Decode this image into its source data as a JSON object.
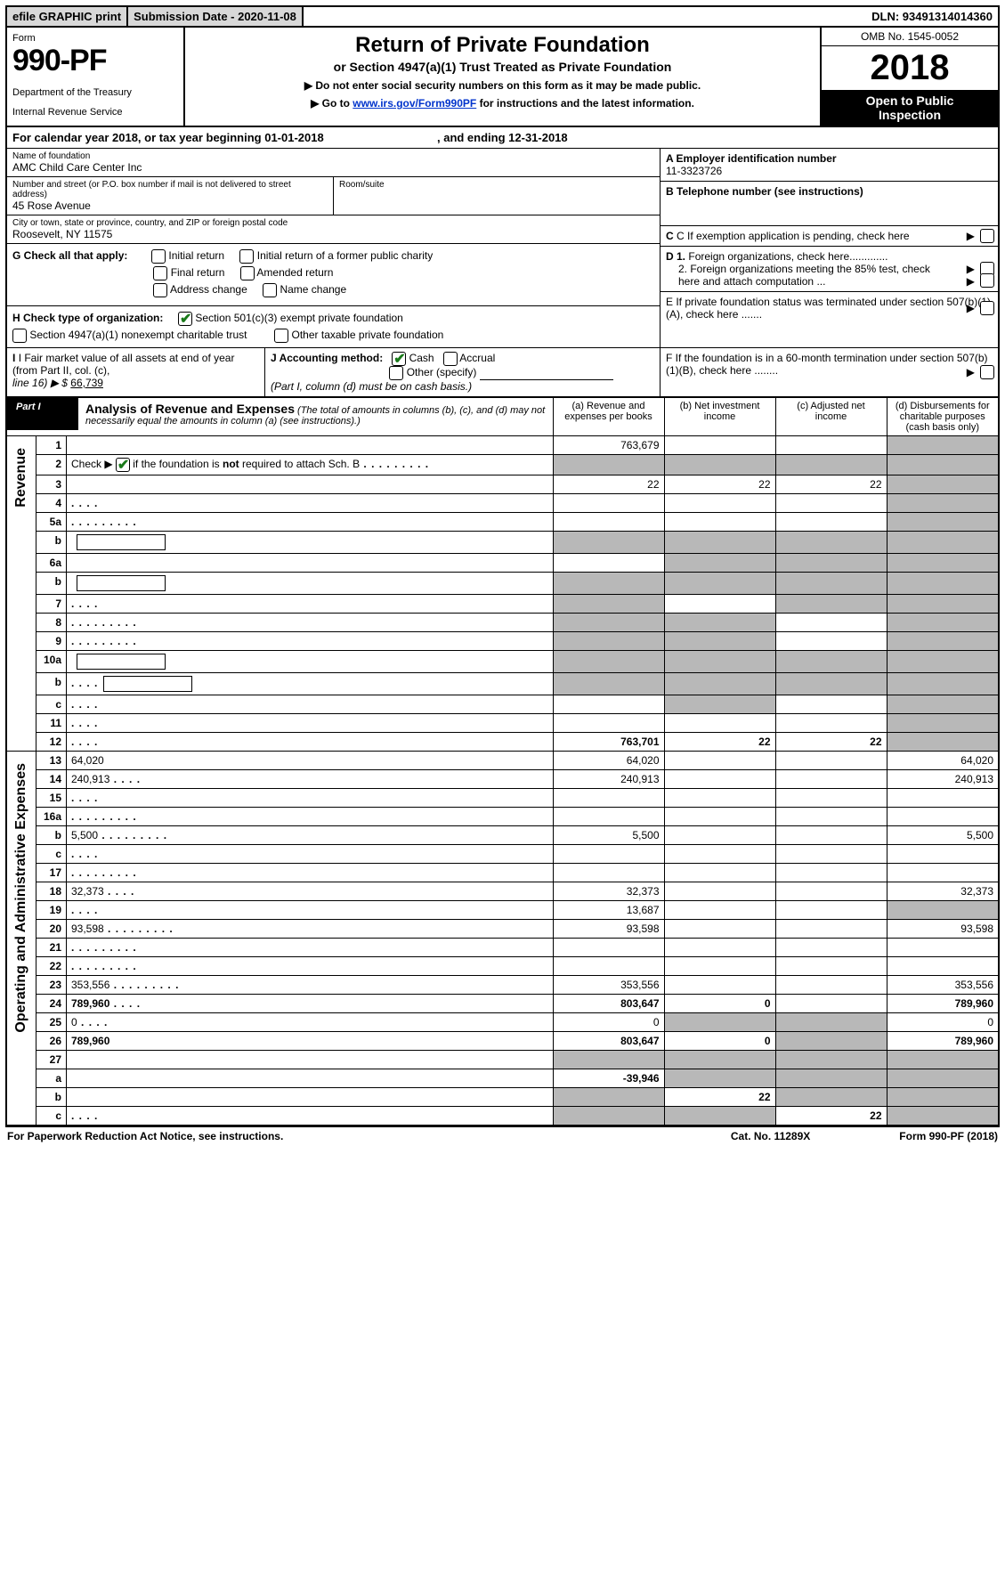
{
  "topbar": {
    "efile": "efile GRAPHIC print",
    "submission": "Submission Date - 2020-11-08",
    "dln": "DLN: 93491314014360"
  },
  "header": {
    "form_label": "Form",
    "form_no": "990-PF",
    "dept1": "Department of the Treasury",
    "dept2": "Internal Revenue Service",
    "title": "Return of Private Foundation",
    "subtitle": "or Section 4947(a)(1) Trust Treated as Private Foundation",
    "note1": "▶ Do not enter social security numbers on this form as it may be made public.",
    "note2_pre": "▶ Go to ",
    "note2_link": "www.irs.gov/Form990PF",
    "note2_post": " for instructions and the latest information.",
    "omb": "OMB No. 1545-0052",
    "year": "2018",
    "open1": "Open to Public",
    "open2": "Inspection"
  },
  "cal": {
    "text_a": "For calendar year 2018, or tax year beginning 01-01-2018",
    "text_b": ", and ending 12-31-2018"
  },
  "id": {
    "name_lbl": "Name of foundation",
    "name": "AMC Child Care Center Inc",
    "addr_lbl": "Number and street (or P.O. box number if mail is not delivered to street address)",
    "addr": "45 Rose Avenue",
    "room_lbl": "Room/suite",
    "city_lbl": "City or town, state or province, country, and ZIP or foreign postal code",
    "city": "Roosevelt, NY  11575"
  },
  "right": {
    "a_lbl": "A Employer identification number",
    "a_val": "11-3323726",
    "b_lbl": "B Telephone number (see instructions)",
    "c_lbl": "C If exemption application is pending, check here",
    "d1": "D 1. Foreign organizations, check here.............",
    "d2": "2. Foreign organizations meeting the 85% test, check here and attach computation ...",
    "e": "E   If private foundation status was terminated under section 507(b)(1)(A), check here .......",
    "f": "F   If the foundation is in a 60-month termination under section 507(b)(1)(B), check here ........"
  },
  "g": {
    "lbl": "G Check all that apply:",
    "o1": "Initial return",
    "o2": "Initial return of a former public charity",
    "o3": "Final return",
    "o4": "Amended return",
    "o5": "Address change",
    "o6": "Name change"
  },
  "h": {
    "lbl": "H Check type of organization:",
    "o1": "Section 501(c)(3) exempt private foundation",
    "o2": "Section 4947(a)(1) nonexempt charitable trust",
    "o3": "Other taxable private foundation"
  },
  "i": {
    "lbl": "I Fair market value of all assets at end of year (from Part II, col. (c),",
    "line": "line 16) ▶ $",
    "val": "66,739"
  },
  "j": {
    "lbl": "J Accounting method:",
    "o1": "Cash",
    "o2": "Accrual",
    "o3": "Other (specify)",
    "note": "(Part I, column (d) must be on cash basis.)"
  },
  "part1": {
    "label": "Part I",
    "title": "Analysis of Revenue and Expenses",
    "note": " (The total of amounts in columns (b), (c), and (d) may not necessarily equal the amounts in column (a) (see instructions).)",
    "col_a": "(a)    Revenue and expenses per books",
    "col_b": "(b)   Net investment income",
    "col_c": "(c)   Adjusted net income",
    "col_d": "(d)   Disbursements for charitable purposes (cash basis only)"
  },
  "sides": {
    "rev": "Revenue",
    "ops": "Operating and Administrative Expenses"
  },
  "rows": [
    {
      "n": "1",
      "d": "",
      "a": "763,679",
      "b": "",
      "c": "",
      "shade": [
        "d"
      ]
    },
    {
      "n": "2",
      "d": "",
      "dots": true,
      "a": "",
      "b": "",
      "c": "",
      "shade": [
        "a",
        "b",
        "c",
        "d"
      ]
    },
    {
      "n": "3",
      "d": "",
      "a": "22",
      "b": "22",
      "c": "22",
      "shade": [
        "d"
      ]
    },
    {
      "n": "4",
      "d": "",
      "dots": "short",
      "a": "",
      "b": "",
      "c": "",
      "shade": [
        "d"
      ]
    },
    {
      "n": "5a",
      "d": "",
      "dots": true,
      "a": "",
      "b": "",
      "c": "",
      "shade": [
        "d"
      ]
    },
    {
      "n": "b",
      "d": "",
      "box": true,
      "a": "",
      "b": "",
      "c": "",
      "shade": [
        "a",
        "b",
        "c",
        "d"
      ]
    },
    {
      "n": "6a",
      "d": "",
      "a": "",
      "b": "",
      "c": "",
      "shade": [
        "b",
        "c",
        "d"
      ]
    },
    {
      "n": "b",
      "d": "",
      "box": true,
      "a": "",
      "b": "",
      "c": "",
      "shade": [
        "a",
        "b",
        "c",
        "d"
      ]
    },
    {
      "n": "7",
      "d": "",
      "dots": "short",
      "a": "",
      "b": "",
      "c": "",
      "shade": [
        "a",
        "c",
        "d"
      ]
    },
    {
      "n": "8",
      "d": "",
      "dots": true,
      "a": "",
      "b": "",
      "c": "",
      "shade": [
        "a",
        "b",
        "d"
      ]
    },
    {
      "n": "9",
      "d": "",
      "dots": true,
      "a": "",
      "b": "",
      "c": "",
      "shade": [
        "a",
        "b",
        "d"
      ]
    },
    {
      "n": "10a",
      "d": "",
      "box": true,
      "a": "",
      "b": "",
      "c": "",
      "shade": [
        "a",
        "b",
        "c",
        "d"
      ]
    },
    {
      "n": "b",
      "d": "",
      "dots": "short",
      "box": true,
      "a": "",
      "b": "",
      "c": "",
      "shade": [
        "a",
        "b",
        "c",
        "d"
      ]
    },
    {
      "n": "c",
      "d": "",
      "dots": "short",
      "a": "",
      "b": "",
      "c": "",
      "shade": [
        "b",
        "d"
      ]
    },
    {
      "n": "11",
      "d": "",
      "dots": "short",
      "a": "",
      "b": "",
      "c": "",
      "shade": [
        "d"
      ]
    },
    {
      "n": "12",
      "d": "",
      "dots": "short",
      "bold": true,
      "a": "763,701",
      "b": "22",
      "c": "22",
      "shade": [
        "d"
      ]
    },
    {
      "n": "13",
      "d": "64,020",
      "a": "64,020",
      "b": "",
      "c": ""
    },
    {
      "n": "14",
      "d": "240,913",
      "dots": "short",
      "a": "240,913",
      "b": "",
      "c": ""
    },
    {
      "n": "15",
      "d": "",
      "dots": "short",
      "a": "",
      "b": "",
      "c": ""
    },
    {
      "n": "16a",
      "d": "",
      "dots": true,
      "a": "",
      "b": "",
      "c": ""
    },
    {
      "n": "b",
      "d": "5,500",
      "dots": true,
      "a": "5,500",
      "b": "",
      "c": ""
    },
    {
      "n": "c",
      "d": "",
      "dots": "short",
      "a": "",
      "b": "",
      "c": ""
    },
    {
      "n": "17",
      "d": "",
      "dots": true,
      "a": "",
      "b": "",
      "c": ""
    },
    {
      "n": "18",
      "d": "32,373",
      "dots": "short",
      "a": "32,373",
      "b": "",
      "c": ""
    },
    {
      "n": "19",
      "d": "",
      "dots": "short",
      "a": "13,687",
      "b": "",
      "c": "",
      "shade": [
        "d"
      ]
    },
    {
      "n": "20",
      "d": "93,598",
      "dots": true,
      "a": "93,598",
      "b": "",
      "c": ""
    },
    {
      "n": "21",
      "d": "",
      "dots": true,
      "a": "",
      "b": "",
      "c": ""
    },
    {
      "n": "22",
      "d": "",
      "dots": true,
      "a": "",
      "b": "",
      "c": ""
    },
    {
      "n": "23",
      "d": "353,556",
      "dots": true,
      "a": "353,556",
      "b": "",
      "c": ""
    },
    {
      "n": "24",
      "d": "789,960",
      "dots": "short",
      "bold": true,
      "a": "803,647",
      "b": "0",
      "c": ""
    },
    {
      "n": "25",
      "d": "0",
      "dots": "short",
      "a": "0",
      "b": "",
      "c": "",
      "shade": [
        "b",
        "c"
      ]
    },
    {
      "n": "26",
      "d": "789,960",
      "bold": true,
      "a": "803,647",
      "b": "0",
      "c": "",
      "shade": [
        "c"
      ]
    },
    {
      "n": "27",
      "d": "",
      "a": "",
      "b": "",
      "c": "",
      "shade": [
        "a",
        "b",
        "c",
        "d"
      ]
    },
    {
      "n": "a",
      "d": "",
      "bold": true,
      "a": "-39,946",
      "b": "",
      "c": "",
      "shade": [
        "b",
        "c",
        "d"
      ]
    },
    {
      "n": "b",
      "d": "",
      "bold": true,
      "a": "",
      "b": "22",
      "c": "",
      "shade": [
        "a",
        "c",
        "d"
      ]
    },
    {
      "n": "c",
      "d": "",
      "bold": true,
      "dots": "short",
      "a": "",
      "b": "",
      "c": "22",
      "shade": [
        "a",
        "b",
        "d"
      ]
    }
  ],
  "footer": {
    "left": "For Paperwork Reduction Act Notice, see instructions.",
    "mid": "Cat. No. 11289X",
    "right": "Form 990-PF (2018)"
  },
  "colors": {
    "shade": "#b8b8b8",
    "link": "#0033cc",
    "check": "#1a7a1a"
  }
}
